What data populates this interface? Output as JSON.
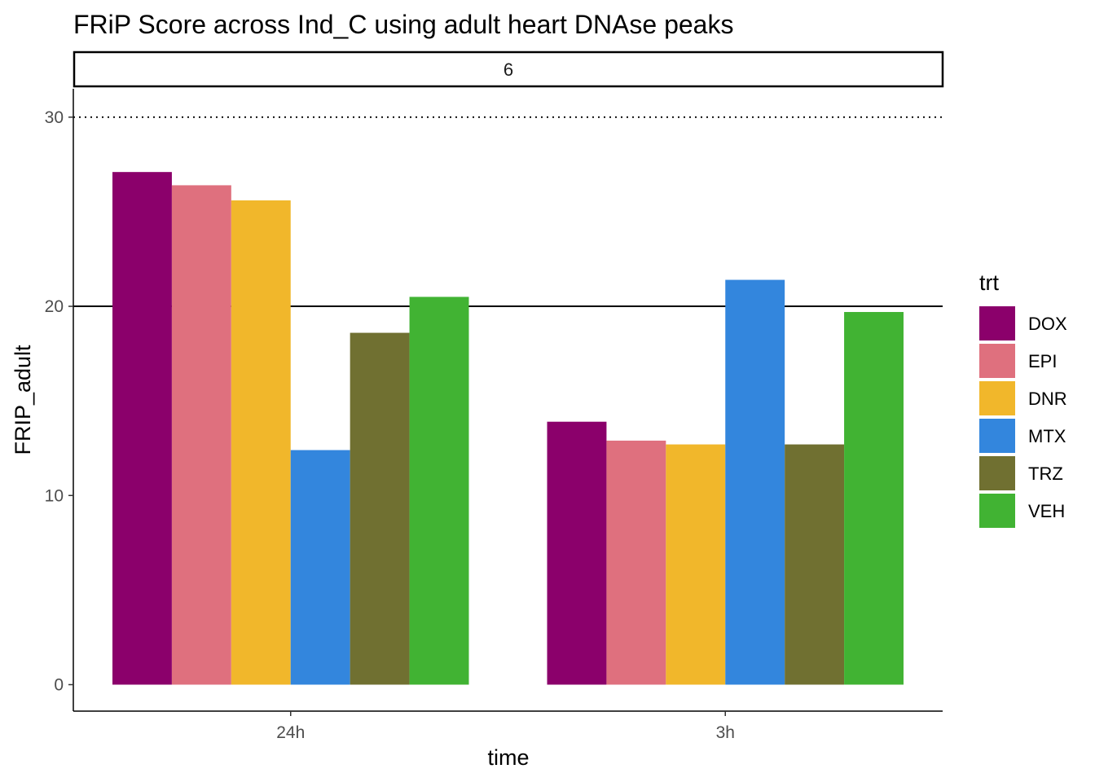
{
  "chart_data": {
    "type": "bar",
    "title": "FRiP Score across Ind_C using adult heart DNAse peaks",
    "facet_label": "6",
    "xlabel": "time",
    "ylabel": "FRIP_adult",
    "categories": [
      "24h",
      "3h"
    ],
    "series": [
      {
        "name": "DOX",
        "color": "#8B006B",
        "values": [
          27.1,
          13.9
        ]
      },
      {
        "name": "EPI",
        "color": "#DF707E",
        "values": [
          26.4,
          12.9
        ]
      },
      {
        "name": "DNR",
        "color": "#F1B72B",
        "values": [
          25.6,
          12.7
        ]
      },
      {
        "name": "MTX",
        "color": "#3386DD",
        "values": [
          12.4,
          21.4
        ]
      },
      {
        "name": "TRZ",
        "color": "#707031",
        "values": [
          18.6,
          12.7
        ]
      },
      {
        "name": "VEH",
        "color": "#41B333",
        "values": [
          20.5,
          19.7
        ]
      }
    ],
    "ylim": [
      -1.4,
      31.5
    ],
    "yticks": [
      0,
      10,
      20,
      30
    ],
    "reference_lines": [
      {
        "y": 20,
        "style": "solid"
      },
      {
        "y": 30,
        "style": "dotted"
      }
    ],
    "legend": {
      "title": "trt",
      "position": "right"
    },
    "grid": false
  }
}
